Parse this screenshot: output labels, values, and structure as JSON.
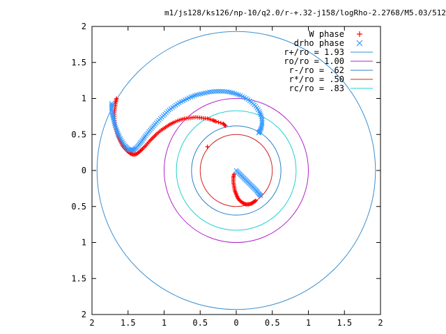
{
  "chart_data": {
    "type": "scatter",
    "title": "m1/js128/ks126/np-10/q2.0/r-+.32-j158/logRho-2.2768/M5.03/512",
    "xlim": [
      -2,
      2
    ],
    "ylim": [
      -2,
      2
    ],
    "x_tick_values": [
      -2,
      -1.5,
      -1,
      -0.5,
      0,
      0.5,
      1,
      1.5,
      2
    ],
    "x_tick_labels": [
      "2",
      "1.5",
      "1",
      "0.5",
      "0",
      "0.5",
      "1",
      "1.5",
      "2"
    ],
    "y_tick_values": [
      2,
      1.5,
      1,
      0.5,
      0,
      -0.5,
      -1,
      -1.5,
      -2
    ],
    "y_tick_labels": [
      "2",
      "1.5",
      "1",
      "0.5",
      "0",
      "0.5",
      "1",
      "1.5",
      "2"
    ],
    "grid": false,
    "legend_position": "top-right",
    "series": [
      {
        "name": "W phase",
        "marker": "plus",
        "color": "#ff0000",
        "points": [
          [
            -1.66,
            1.0
          ],
          [
            -1.67,
            0.95
          ],
          [
            -1.68,
            0.88
          ],
          [
            -1.69,
            0.8
          ],
          [
            -1.69,
            0.72
          ],
          [
            -1.68,
            0.64
          ],
          [
            -1.66,
            0.56
          ],
          [
            -1.64,
            0.48
          ],
          [
            -1.61,
            0.41
          ],
          [
            -1.58,
            0.35
          ],
          [
            -1.54,
            0.3
          ],
          [
            -1.5,
            0.26
          ],
          [
            -1.46,
            0.23
          ],
          [
            -1.42,
            0.22
          ],
          [
            -1.38,
            0.23
          ],
          [
            -1.34,
            0.26
          ],
          [
            -1.3,
            0.3
          ],
          [
            -1.25,
            0.35
          ],
          [
            -1.2,
            0.41
          ],
          [
            -1.15,
            0.46
          ],
          [
            -1.1,
            0.51
          ],
          [
            -1.04,
            0.56
          ],
          [
            -0.98,
            0.6
          ],
          [
            -0.92,
            0.64
          ],
          [
            -0.86,
            0.67
          ],
          [
            -0.79,
            0.7
          ],
          [
            -0.72,
            0.72
          ],
          [
            -0.64,
            0.73
          ],
          [
            -0.56,
            0.74
          ],
          [
            -0.48,
            0.73
          ],
          [
            -0.4,
            0.72
          ],
          [
            -0.33,
            0.7
          ],
          [
            -0.28,
            0.68
          ],
          [
            -0.18,
            0.65
          ],
          [
            -0.15,
            0.62
          ],
          [
            -0.4,
            0.33
          ],
          [
            -0.03,
            -0.05
          ],
          [
            -0.04,
            -0.1
          ],
          [
            -0.04,
            -0.16
          ],
          [
            -0.03,
            -0.22
          ],
          [
            -0.02,
            -0.28
          ],
          [
            0.0,
            -0.33
          ],
          [
            0.02,
            -0.38
          ],
          [
            0.05,
            -0.42
          ],
          [
            0.09,
            -0.45
          ],
          [
            0.13,
            -0.47
          ],
          [
            0.17,
            -0.47
          ],
          [
            0.21,
            -0.46
          ],
          [
            0.24,
            -0.44
          ],
          [
            0.27,
            -0.42
          ]
        ]
      },
      {
        "name": "drho phase",
        "marker": "cross",
        "color": "#3399ff",
        "points": [
          [
            -1.73,
            0.93
          ],
          [
            -1.73,
            0.86
          ],
          [
            -1.72,
            0.78
          ],
          [
            -1.7,
            0.7
          ],
          [
            -1.68,
            0.62
          ],
          [
            -1.65,
            0.54
          ],
          [
            -1.62,
            0.47
          ],
          [
            -1.58,
            0.4
          ],
          [
            -1.54,
            0.34
          ],
          [
            -1.5,
            0.3
          ],
          [
            -1.46,
            0.28
          ],
          [
            -1.42,
            0.29
          ],
          [
            -1.38,
            0.32
          ],
          [
            -1.34,
            0.37
          ],
          [
            -1.3,
            0.42
          ],
          [
            -1.26,
            0.48
          ],
          [
            -1.21,
            0.54
          ],
          [
            -1.16,
            0.6
          ],
          [
            -1.11,
            0.66
          ],
          [
            -1.05,
            0.72
          ],
          [
            -0.99,
            0.78
          ],
          [
            -0.93,
            0.84
          ],
          [
            -0.86,
            0.89
          ],
          [
            -0.79,
            0.94
          ],
          [
            -0.71,
            0.98
          ],
          [
            -0.63,
            1.02
          ],
          [
            -0.55,
            1.05
          ],
          [
            -0.46,
            1.07
          ],
          [
            -0.37,
            1.09
          ],
          [
            -0.28,
            1.1
          ],
          [
            -0.19,
            1.1
          ],
          [
            -0.1,
            1.09
          ],
          [
            -0.02,
            1.07
          ],
          [
            0.06,
            1.04
          ],
          [
            0.14,
            1.0
          ],
          [
            0.21,
            0.95
          ],
          [
            0.27,
            0.89
          ],
          [
            0.32,
            0.82
          ],
          [
            0.35,
            0.75
          ],
          [
            0.36,
            0.67
          ],
          [
            0.35,
            0.6
          ],
          [
            0.33,
            0.55
          ],
          [
            0.31,
            0.52
          ],
          [
            0.0,
            0.0
          ],
          [
            0.04,
            -0.04
          ],
          [
            0.08,
            -0.08
          ],
          [
            0.12,
            -0.12
          ],
          [
            0.16,
            -0.16
          ],
          [
            0.2,
            -0.2
          ],
          [
            0.24,
            -0.24
          ],
          [
            0.28,
            -0.28
          ],
          [
            0.31,
            -0.32
          ],
          [
            0.34,
            -0.35
          ]
        ]
      }
    ],
    "circles": [
      {
        "name": "r+/ro = 1.93",
        "radius": 1.93,
        "color": "#3a8fd1"
      },
      {
        "name": "ro/ro = 1.00",
        "radius": 1.0,
        "color": "#b122c9"
      },
      {
        "name": "r-/ro = .62",
        "radius": 0.62,
        "color": "#2a7fc4"
      },
      {
        "name": "r*/ro = .50",
        "radius": 0.5,
        "color": "#d42020"
      },
      {
        "name": "rc/ro = .83",
        "radius": 0.83,
        "color": "#22d0d0"
      }
    ]
  }
}
